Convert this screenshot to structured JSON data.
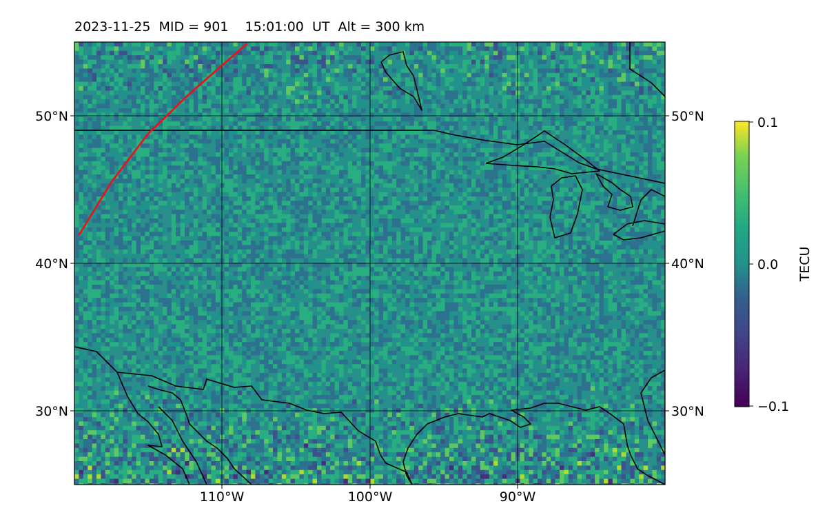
{
  "title": "2023-11-25  MID = 901    15:01:00  UT  Alt = 300 km",
  "map": {
    "lon_range": [
      -119,
      -79
    ],
    "lat_range": [
      25,
      55
    ],
    "lat_gridlines": [
      30,
      40,
      50
    ],
    "lon_gridlines": [
      -110,
      -100,
      -90
    ],
    "lat_tick_labels": [
      "30°N",
      "40°N",
      "50°N"
    ],
    "lon_tick_labels": [
      "110°W",
      "100°W",
      "90°W"
    ],
    "colors": {
      "track": "#e8141c",
      "coastline": "#000000"
    },
    "track_line": [
      [
        -118.7,
        41.9
      ],
      [
        -116.5,
        45.5
      ],
      [
        -114.0,
        48.8
      ],
      [
        -111.2,
        51.5
      ],
      [
        -107.3,
        54.9
      ]
    ]
  },
  "colorbar": {
    "label": "TECU",
    "colormap": "viridis",
    "min": -0.1,
    "max": 0.1,
    "ticks": [
      "0.1",
      "0.0",
      "−0.1"
    ]
  }
}
